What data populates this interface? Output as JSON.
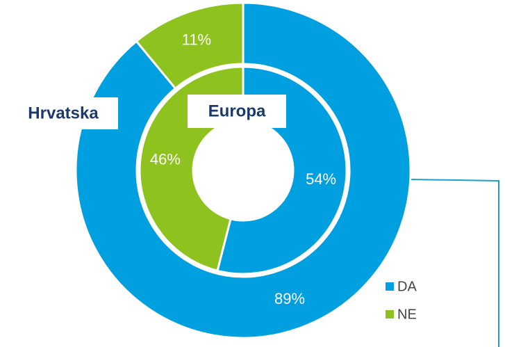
{
  "chart_data": {
    "type": "donut",
    "categories": [
      "DA",
      "NE"
    ],
    "colors": [
      "#009fdf",
      "#8dc21f"
    ],
    "series": [
      {
        "name": "Hrvatska",
        "values": [
          89,
          11
        ],
        "value_labels": [
          "89%",
          "11%"
        ]
      },
      {
        "name": "Europa",
        "values": [
          54,
          46
        ],
        "value_labels": [
          "54%",
          "46%"
        ]
      }
    ]
  }
}
